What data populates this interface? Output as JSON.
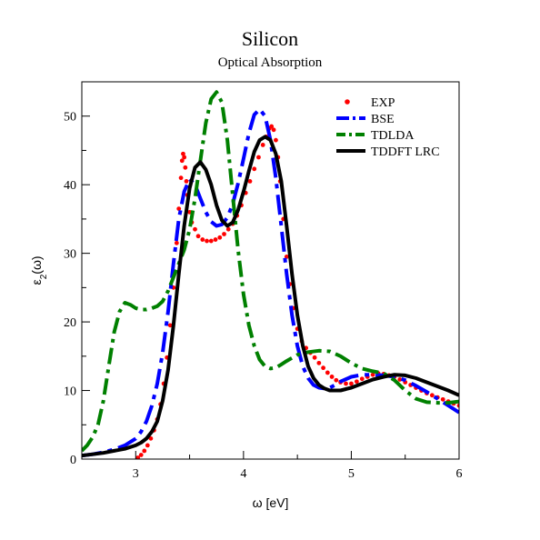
{
  "chart_data": {
    "type": "line",
    "title": "Silicon",
    "subtitle": "Optical Absorption",
    "xlabel": "ω [eV]",
    "ylabel_main": "ε",
    "ylabel_sub": "2",
    "ylabel_tail": "(ω)",
    "xlim": [
      2.5,
      6.0
    ],
    "ylim": [
      0,
      55
    ],
    "xticks": [
      3,
      4,
      5,
      6
    ],
    "yticks": [
      0,
      10,
      20,
      30,
      40,
      50
    ],
    "grid": false,
    "legend_position": "top-right",
    "series": [
      {
        "name": "EXP",
        "color": "#ff0000",
        "style": "dots",
        "x": [
          3.02,
          3.05,
          3.08,
          3.11,
          3.14,
          3.17,
          3.2,
          3.23,
          3.26,
          3.29,
          3.32,
          3.35,
          3.38,
          3.4,
          3.42,
          3.43,
          3.44,
          3.45,
          3.46,
          3.47,
          3.48,
          3.5,
          3.52,
          3.55,
          3.58,
          3.62,
          3.66,
          3.7,
          3.74,
          3.78,
          3.82,
          3.86,
          3.9,
          3.94,
          3.98,
          4.02,
          4.06,
          4.1,
          4.14,
          4.18,
          4.21,
          4.24,
          4.26,
          4.28,
          4.3,
          4.32,
          4.34,
          4.37,
          4.4,
          4.43,
          4.46,
          4.5,
          4.54,
          4.58,
          4.62,
          4.66,
          4.7,
          4.74,
          4.78,
          4.82,
          4.86,
          4.9,
          4.95,
          5.0,
          5.05,
          5.1,
          5.15,
          5.2,
          5.25,
          5.3,
          5.35,
          5.4,
          5.45,
          5.5,
          5.55,
          5.6,
          5.65,
          5.7,
          5.75,
          5.8,
          5.85,
          5.9,
          5.95,
          6.0
        ],
        "y": [
          0.2,
          0.6,
          1.2,
          2.0,
          3.0,
          4.2,
          5.8,
          8.0,
          11.0,
          14.8,
          19.5,
          25.0,
          31.5,
          36.5,
          41.0,
          43.5,
          44.5,
          44.0,
          42.5,
          40.5,
          38.5,
          36.0,
          34.5,
          33.5,
          32.5,
          32.0,
          31.8,
          31.8,
          32.0,
          32.3,
          32.8,
          33.5,
          34.3,
          35.5,
          37.0,
          38.8,
          40.5,
          42.3,
          44.0,
          45.8,
          47.0,
          48.2,
          48.5,
          48.0,
          46.5,
          44.0,
          40.5,
          35.0,
          29.5,
          25.5,
          22.0,
          19.0,
          17.2,
          16.2,
          15.5,
          14.8,
          14.0,
          13.3,
          12.6,
          12.0,
          11.5,
          11.2,
          11.0,
          11.0,
          11.3,
          11.7,
          12.0,
          12.3,
          12.5,
          12.4,
          12.2,
          12.0,
          11.6,
          11.2,
          10.8,
          10.4,
          10.0,
          9.6,
          9.3,
          9.0,
          8.7,
          8.4,
          8.1,
          7.8
        ]
      },
      {
        "name": "BSE",
        "color": "#0000ff",
        "style": "dashed",
        "x": [
          2.5,
          2.6,
          2.7,
          2.8,
          2.9,
          3.0,
          3.05,
          3.1,
          3.15,
          3.2,
          3.25,
          3.3,
          3.35,
          3.4,
          3.45,
          3.5,
          3.55,
          3.6,
          3.65,
          3.7,
          3.75,
          3.8,
          3.85,
          3.9,
          3.95,
          4.0,
          4.05,
          4.1,
          4.15,
          4.2,
          4.25,
          4.3,
          4.35,
          4.4,
          4.45,
          4.5,
          4.55,
          4.6,
          4.65,
          4.7,
          4.75,
          4.8,
          4.85,
          4.9,
          5.0,
          5.1,
          5.2,
          5.3,
          5.4,
          5.5,
          5.6,
          5.7,
          5.8,
          5.9,
          6.0
        ],
        "y": [
          0.5,
          0.7,
          1.0,
          1.4,
          2.0,
          3.0,
          4.0,
          5.5,
          7.8,
          11.0,
          15.5,
          21.5,
          28.5,
          35.0,
          39.0,
          40.8,
          40.0,
          38.0,
          36.0,
          34.6,
          34.0,
          34.2,
          35.2,
          37.2,
          40.2,
          43.8,
          47.5,
          50.2,
          51.0,
          50.0,
          46.5,
          41.0,
          34.0,
          27.0,
          21.0,
          16.5,
          13.5,
          11.8,
          10.8,
          10.4,
          10.3,
          10.4,
          10.8,
          11.3,
          12.0,
          12.3,
          12.3,
          12.2,
          12.0,
          11.5,
          10.7,
          9.8,
          8.8,
          7.8,
          6.8
        ]
      },
      {
        "name": "TDLDA",
        "color": "#008000",
        "style": "dashdot",
        "x": [
          2.5,
          2.55,
          2.6,
          2.65,
          2.7,
          2.75,
          2.8,
          2.85,
          2.9,
          2.95,
          3.0,
          3.05,
          3.1,
          3.15,
          3.2,
          3.25,
          3.3,
          3.35,
          3.4,
          3.45,
          3.5,
          3.55,
          3.6,
          3.65,
          3.7,
          3.75,
          3.8,
          3.85,
          3.9,
          3.95,
          4.0,
          4.05,
          4.1,
          4.15,
          4.2,
          4.25,
          4.3,
          4.35,
          4.4,
          4.5,
          4.6,
          4.7,
          4.8,
          4.9,
          5.0,
          5.1,
          5.2,
          5.3,
          5.4,
          5.5,
          5.6,
          5.7,
          5.8,
          5.9,
          6.0
        ],
        "y": [
          1.2,
          2.0,
          3.2,
          5.0,
          8.5,
          13.5,
          18.5,
          21.5,
          22.8,
          22.5,
          22.0,
          21.8,
          21.8,
          22.0,
          22.3,
          23.0,
          24.5,
          26.5,
          28.5,
          30.5,
          33.5,
          38.0,
          43.5,
          49.0,
          52.5,
          53.5,
          52.0,
          46.5,
          38.5,
          30.5,
          24.0,
          19.5,
          16.5,
          14.5,
          13.5,
          13.2,
          13.3,
          13.8,
          14.3,
          15.2,
          15.6,
          15.8,
          15.7,
          15.0,
          14.0,
          13.2,
          12.8,
          12.5,
          11.5,
          10.0,
          8.8,
          8.3,
          8.2,
          8.2,
          8.4
        ]
      },
      {
        "name": "TDDFT LRC",
        "color": "#000000",
        "style": "solid",
        "x": [
          2.5,
          2.6,
          2.7,
          2.8,
          2.9,
          3.0,
          3.05,
          3.1,
          3.15,
          3.2,
          3.25,
          3.3,
          3.35,
          3.4,
          3.45,
          3.5,
          3.55,
          3.6,
          3.65,
          3.7,
          3.75,
          3.8,
          3.85,
          3.9,
          3.95,
          4.0,
          4.05,
          4.1,
          4.15,
          4.2,
          4.25,
          4.3,
          4.35,
          4.4,
          4.45,
          4.5,
          4.55,
          4.6,
          4.65,
          4.7,
          4.75,
          4.8,
          4.85,
          4.9,
          4.95,
          5.0,
          5.1,
          5.2,
          5.3,
          5.4,
          5.5,
          5.6,
          5.7,
          5.8,
          5.9,
          6.0
        ],
        "y": [
          0.5,
          0.7,
          0.9,
          1.2,
          1.5,
          2.0,
          2.4,
          3.0,
          4.0,
          5.5,
          8.5,
          13.0,
          19.5,
          27.0,
          34.0,
          39.5,
          42.5,
          43.3,
          42.2,
          40.0,
          37.0,
          34.8,
          34.0,
          34.5,
          36.3,
          39.0,
          42.0,
          44.8,
          46.5,
          47.0,
          46.5,
          44.5,
          40.5,
          34.0,
          27.0,
          21.0,
          16.5,
          13.5,
          11.8,
          10.8,
          10.3,
          10.0,
          10.0,
          10.0,
          10.2,
          10.4,
          11.0,
          11.6,
          12.0,
          12.3,
          12.2,
          11.8,
          11.2,
          10.6,
          10.0,
          9.3
        ]
      }
    ]
  }
}
